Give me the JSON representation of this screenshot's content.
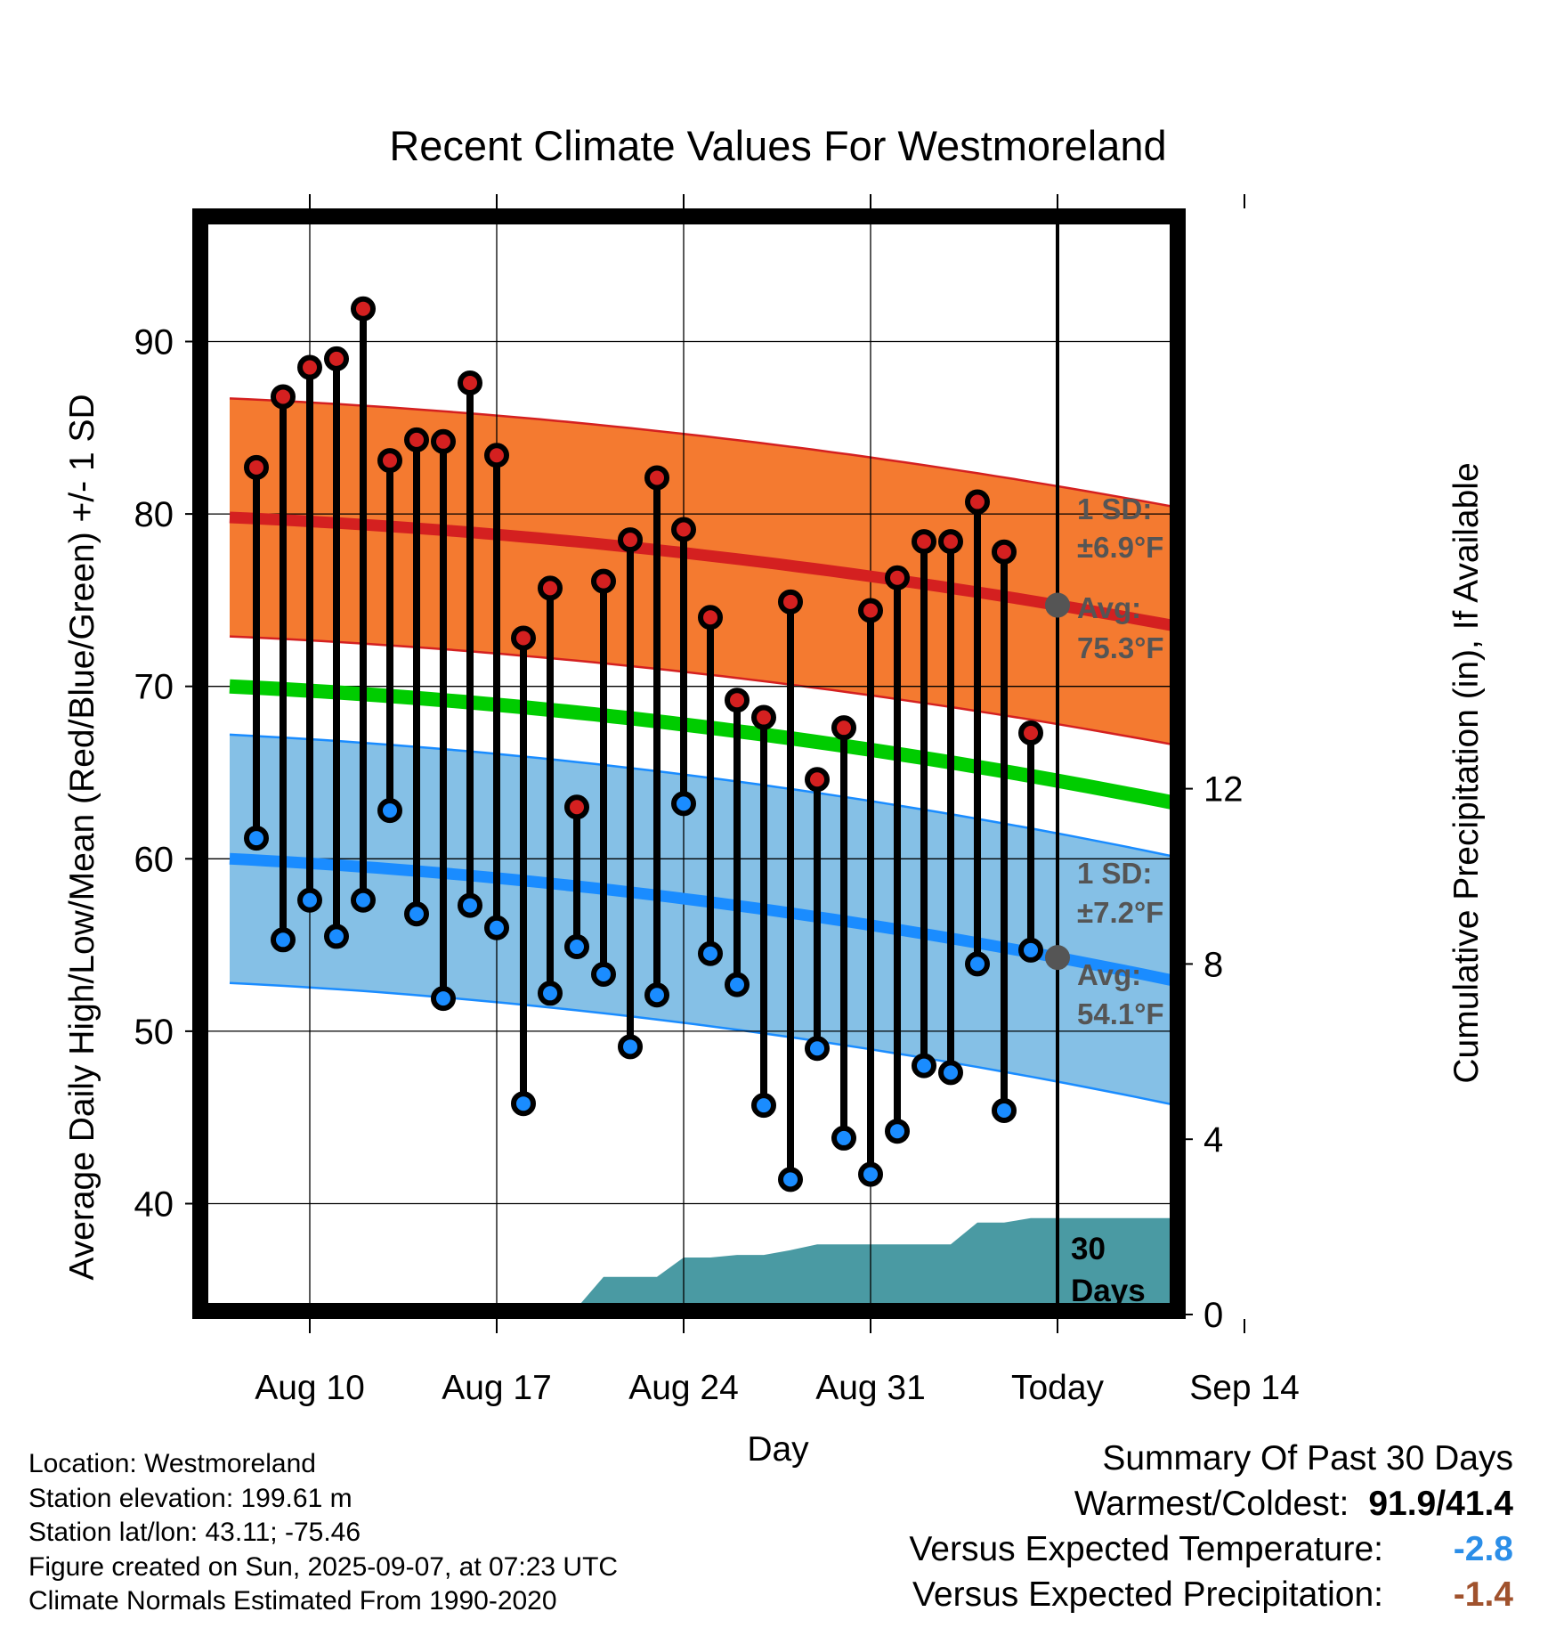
{
  "chart_data": {
    "type": "line",
    "title": "Recent Climate Values For Westmoreland",
    "xlabel": "Day",
    "ylabel": "Average Daily High/Low/Mean (Red/Blue/Green) +/- 1 SD",
    "y2label": "Cumulative Precipitation (in), If Available",
    "x_ticks": [
      "Aug 10",
      "Aug 17",
      "Aug 24",
      "Aug 31",
      "Today",
      "Sep 14"
    ],
    "x_range": [
      "Aug 7",
      "Sep 17"
    ],
    "y_ticks": [
      40,
      50,
      60,
      70,
      80,
      90
    ],
    "ylim": [
      34,
      97
    ],
    "y2_ticks": [
      0,
      4,
      8,
      12
    ],
    "y2lim": [
      0,
      25.5
    ],
    "grid": true,
    "today": "Sep 7",
    "days": [
      "Aug 8",
      "Aug 9",
      "Aug 10",
      "Aug 11",
      "Aug 12",
      "Aug 13",
      "Aug 14",
      "Aug 15",
      "Aug 16",
      "Aug 17",
      "Aug 18",
      "Aug 19",
      "Aug 20",
      "Aug 21",
      "Aug 22",
      "Aug 23",
      "Aug 24",
      "Aug 25",
      "Aug 26",
      "Aug 27",
      "Aug 28",
      "Aug 29",
      "Aug 30",
      "Aug 31",
      "Sep 1",
      "Sep 2",
      "Sep 3",
      "Sep 4",
      "Sep 5",
      "Sep 6"
    ],
    "highs": [
      82.7,
      86.8,
      88.5,
      89.0,
      91.9,
      83.1,
      84.3,
      84.2,
      87.6,
      83.4,
      72.8,
      75.7,
      63.0,
      76.1,
      78.5,
      82.1,
      79.1,
      74.0,
      69.2,
      68.2,
      74.9,
      64.6,
      67.6,
      74.4,
      76.3,
      78.4,
      78.4,
      80.7,
      77.8,
      67.3
    ],
    "lows": [
      61.2,
      55.3,
      57.6,
      55.5,
      57.6,
      62.8,
      56.8,
      51.9,
      57.3,
      56.0,
      45.8,
      52.2,
      54.9,
      53.3,
      49.1,
      52.1,
      63.2,
      54.5,
      52.7,
      45.7,
      41.4,
      49.0,
      43.8,
      41.7,
      44.2,
      48.0,
      47.6,
      53.9,
      45.4,
      54.7
    ],
    "normal_high": {
      "start": 79.8,
      "end": 71.8,
      "avg_today": 75.3,
      "sd_label": "±6.9°F",
      "color": "#d42020",
      "band_color": "#f47a30"
    },
    "normal_low": {
      "start": 60.0,
      "end": 51.0,
      "avg_today": 54.1,
      "sd_label": "±7.2°F",
      "color": "#1a8cff",
      "band_color": "#85c0e6"
    },
    "normal_mean": {
      "start": 70.0,
      "end": 61.4,
      "color": "#00cc00"
    },
    "high_sd": 6.9,
    "low_sd": 7.2,
    "precip_days": [
      "Aug 7",
      "Aug 17",
      "Aug 18",
      "Aug 19",
      "Aug 20",
      "Aug 21",
      "Aug 22",
      "Aug 23",
      "Aug 24",
      "Aug 25",
      "Aug 26",
      "Aug 27",
      "Aug 28",
      "Aug 29",
      "Aug 30",
      "Aug 31",
      "Sep 1",
      "Sep 2",
      "Sep 3",
      "Sep 4",
      "Sep 5",
      "Sep 6",
      "Sep 17"
    ],
    "precip_cum": [
      0,
      0,
      0.15,
      0.15,
      0.15,
      0.86,
      0.86,
      0.86,
      1.3,
      1.3,
      1.36,
      1.36,
      1.47,
      1.6,
      1.6,
      1.6,
      1.6,
      1.6,
      1.6,
      2.1,
      2.1,
      2.2,
      2.2
    ],
    "precip_color": "#4a9aa3",
    "precip_label": "30 Days",
    "sd_heading": "1 SD:",
    "avg_heading": "Avg:",
    "avg_high_label": "75.3°F",
    "avg_low_label": "54.1°F"
  },
  "info": {
    "location": "Location: Westmoreland",
    "elevation": "Station elevation: 199.61 m",
    "latlon": "Station lat/lon: 43.11; -75.46",
    "created": "Figure created on Sun, 2025-09-07, at 07:23 UTC",
    "normals": "Climate Normals Estimated From 1990-2020"
  },
  "summary": {
    "heading": "Summary Of Past 30 Days",
    "warm_cold_label": "Warmest/Coldest:",
    "warm_cold_value": "91.9/41.4",
    "temp_label": "Versus Expected Temperature:",
    "temp_value": "-2.8",
    "temp_color": "#2b8ee8",
    "precip_label": "Versus Expected Precipitation:",
    "precip_value": "-1.4",
    "precip_color": "#a0522d"
  }
}
